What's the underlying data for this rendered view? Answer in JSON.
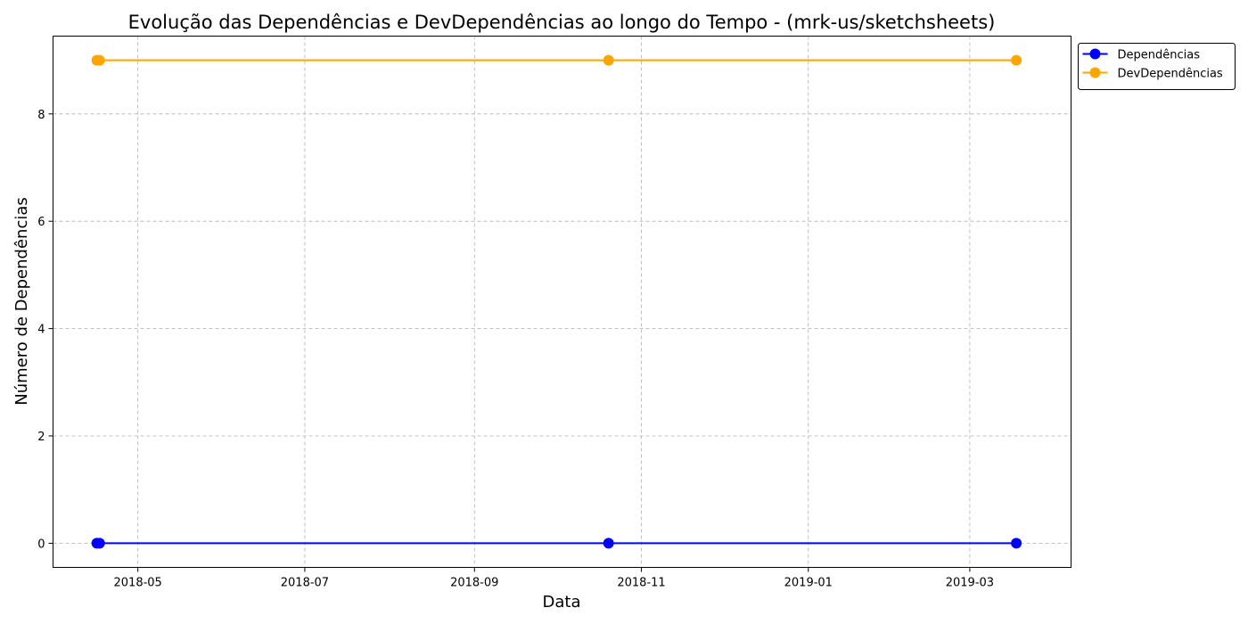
{
  "chart_data": {
    "type": "line",
    "title": "Evolução das Dependências e DevDependências ao longo do Tempo - (mrk-us/sketchsheets)",
    "xlabel": "Data",
    "ylabel": "Número de Dependências",
    "x_is_date": true,
    "xlim": [
      "2018-03-31",
      "2019-04-07"
    ],
    "ylim": [
      -0.45,
      9.45
    ],
    "x_ticks": [
      {
        "value": "2018-05-01",
        "label": "2018-05"
      },
      {
        "value": "2018-07-01",
        "label": "2018-07"
      },
      {
        "value": "2018-09-01",
        "label": "2018-09"
      },
      {
        "value": "2018-11-01",
        "label": "2018-11"
      },
      {
        "value": "2019-01-01",
        "label": "2019-01"
      },
      {
        "value": "2019-03-01",
        "label": "2019-03"
      }
    ],
    "y_ticks": [
      0,
      2,
      4,
      6,
      8
    ],
    "grid": true,
    "legend_position": "outside-top-right",
    "x": [
      "2018-04-16",
      "2018-04-17",
      "2018-10-20",
      "2019-03-18"
    ],
    "series": [
      {
        "name": "Dependências",
        "color": "#0000ff",
        "values": [
          0,
          0,
          0,
          0
        ]
      },
      {
        "name": "DevDependências",
        "color": "#ffa500",
        "values": [
          9,
          9,
          9,
          9
        ]
      }
    ]
  }
}
